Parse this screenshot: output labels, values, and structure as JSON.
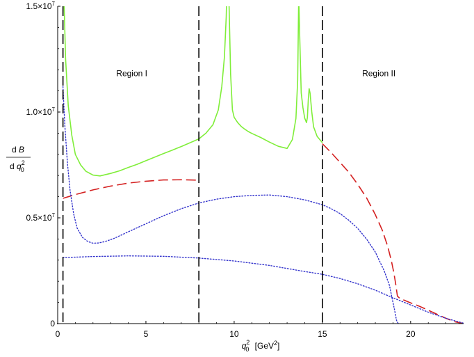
{
  "chart_data": {
    "type": "line",
    "title": "",
    "xlabel": {
      "var": "q",
      "sup": "2",
      "sub": "0",
      "unit": "[GeV",
      "unit_sup": "2",
      "unit_end": "]"
    },
    "ylabel": {
      "num_d": "d",
      "num_var": "B",
      "den_d": "d",
      "den_var": "q",
      "den_sup": "2",
      "den_sub": "0"
    },
    "xlim": [
      0,
      23
    ],
    "ylim": [
      0,
      15000000
    ],
    "x_ticks": [
      {
        "value": 0,
        "label": "0"
      },
      {
        "value": 5,
        "label": "5"
      },
      {
        "value": 10,
        "label": "10"
      },
      {
        "value": 15,
        "label": "15"
      },
      {
        "value": 20,
        "label": "20"
      }
    ],
    "y_ticks": [
      {
        "value": 0,
        "mant": "0",
        "exp": ""
      },
      {
        "value": 5000000,
        "mant": "0.5×10",
        "exp": "7"
      },
      {
        "value": 10000000,
        "mant": "1.0×10",
        "exp": "7"
      },
      {
        "value": 15000000,
        "mant": "1.5×10",
        "exp": "7"
      }
    ],
    "grid": false,
    "annotations": [
      {
        "text": "Region I",
        "x": 4.2,
        "y": 11700000
      },
      {
        "text": "Region II",
        "x": 18.2,
        "y": 11700000
      }
    ],
    "vlines": [
      {
        "x": 0.3,
        "style": "long-dash",
        "color": "#000000"
      },
      {
        "x": 8.0,
        "style": "long-dash",
        "color": "#000000"
      },
      {
        "x": 15.0,
        "style": "long-dash",
        "color": "#000000"
      }
    ],
    "series": [
      {
        "style": "solid",
        "color": "#80ee3a",
        "clip_to_axes": true,
        "x": [
          0.35,
          0.45,
          0.6,
          0.8,
          1.0,
          1.3,
          1.6,
          2.0,
          2.4,
          3.0,
          3.5,
          4.0,
          4.5,
          5.0,
          5.5,
          6.0,
          6.5,
          7.0,
          7.5,
          8.0,
          8.4,
          8.8,
          9.1,
          9.3,
          9.45,
          9.55,
          9.62,
          9.7,
          9.8,
          9.9,
          10.0,
          10.2,
          10.4,
          10.6,
          10.8,
          11.0,
          11.5,
          12.0,
          12.5,
          13.0,
          13.3,
          13.5,
          13.6,
          13.66,
          13.7,
          13.8,
          13.9,
          14.0,
          14.1,
          14.15,
          14.2,
          14.25,
          14.3,
          14.4,
          14.5,
          14.7,
          15.0
        ],
        "y": [
          15500000,
          12500000,
          10300000,
          8900000,
          8000000,
          7500000,
          7200000,
          7020000,
          6980000,
          7100000,
          7220000,
          7380000,
          7530000,
          7700000,
          7870000,
          8040000,
          8200000,
          8370000,
          8550000,
          8730000,
          9000000,
          9400000,
          10100000,
          11200000,
          12600000,
          14500000,
          17000000,
          15500000,
          11800000,
          10100000,
          9750000,
          9500000,
          9320000,
          9190000,
          9080000,
          8990000,
          8800000,
          8580000,
          8380000,
          8280000,
          8700000,
          9700000,
          11500000,
          15500000,
          14000000,
          10900000,
          10200000,
          9700000,
          9500000,
          9750000,
          10600000,
          11100000,
          10900000,
          10000000,
          9300000,
          8850000,
          8550000
        ]
      },
      {
        "style": "long-dash",
        "color": "#d42020",
        "x": [
          0.3,
          1.0,
          2.0,
          3.0,
          4.0,
          5.0,
          6.0,
          7.0,
          8.0
        ],
        "y": [
          5920000,
          6100000,
          6320000,
          6500000,
          6640000,
          6730000,
          6790000,
          6800000,
          6780000
        ]
      },
      {
        "style": "long-dash",
        "color": "#d42020",
        "x": [
          15.0,
          15.5,
          16.0,
          16.5,
          17.0,
          17.5,
          18.0,
          18.4,
          18.7,
          18.9,
          19.05,
          19.15,
          19.25,
          19.4,
          19.6,
          20.0,
          20.5,
          21.0,
          21.5,
          22.0,
          22.5,
          23.0
        ],
        "y": [
          8500000,
          8080000,
          7620000,
          7150000,
          6580000,
          5950000,
          5150000,
          4400000,
          3650000,
          3000000,
          2400000,
          1900000,
          1300000,
          1180000,
          1120000,
          980000,
          820000,
          630000,
          440000,
          250000,
          90000,
          0
        ]
      },
      {
        "style": "dotted",
        "color": "#3333cc",
        "clip_to_axes": true,
        "x": [
          0.3,
          0.4,
          0.55,
          0.7,
          0.9,
          1.1,
          1.4,
          1.7,
          2.0,
          2.3,
          2.7,
          3.2,
          4.0,
          5.0,
          6.0,
          7.0,
          8.0,
          9.0,
          10.0,
          11.0,
          12.0,
          13.0,
          14.0,
          15.0,
          15.5,
          16.0,
          16.5,
          17.0,
          17.5,
          18.0,
          18.5,
          18.8,
          19.0,
          19.1,
          19.2,
          19.3
        ],
        "y": [
          11200000,
          9400000,
          7600000,
          6300000,
          5200000,
          4520000,
          4080000,
          3880000,
          3800000,
          3810000,
          3880000,
          4030000,
          4340000,
          4720000,
          5100000,
          5430000,
          5700000,
          5880000,
          6000000,
          6060000,
          6080000,
          6000000,
          5850000,
          5620000,
          5430000,
          5200000,
          4880000,
          4500000,
          4000000,
          3380000,
          2500000,
          1800000,
          1000000,
          600000,
          150000,
          0
        ]
      },
      {
        "style": "dotted",
        "color": "#3333cc",
        "x": [
          0.3,
          2.0,
          4.0,
          6.0,
          8.0,
          10.0,
          12.0,
          14.0,
          15.0,
          16.0,
          17.0,
          18.0,
          19.0,
          20.0,
          21.0,
          22.0,
          23.0
        ],
        "y": [
          3120000,
          3170000,
          3200000,
          3180000,
          3100000,
          2960000,
          2750000,
          2460000,
          2330000,
          2130000,
          1880000,
          1580000,
          1220000,
          880000,
          540000,
          250000,
          20000
        ]
      }
    ]
  }
}
